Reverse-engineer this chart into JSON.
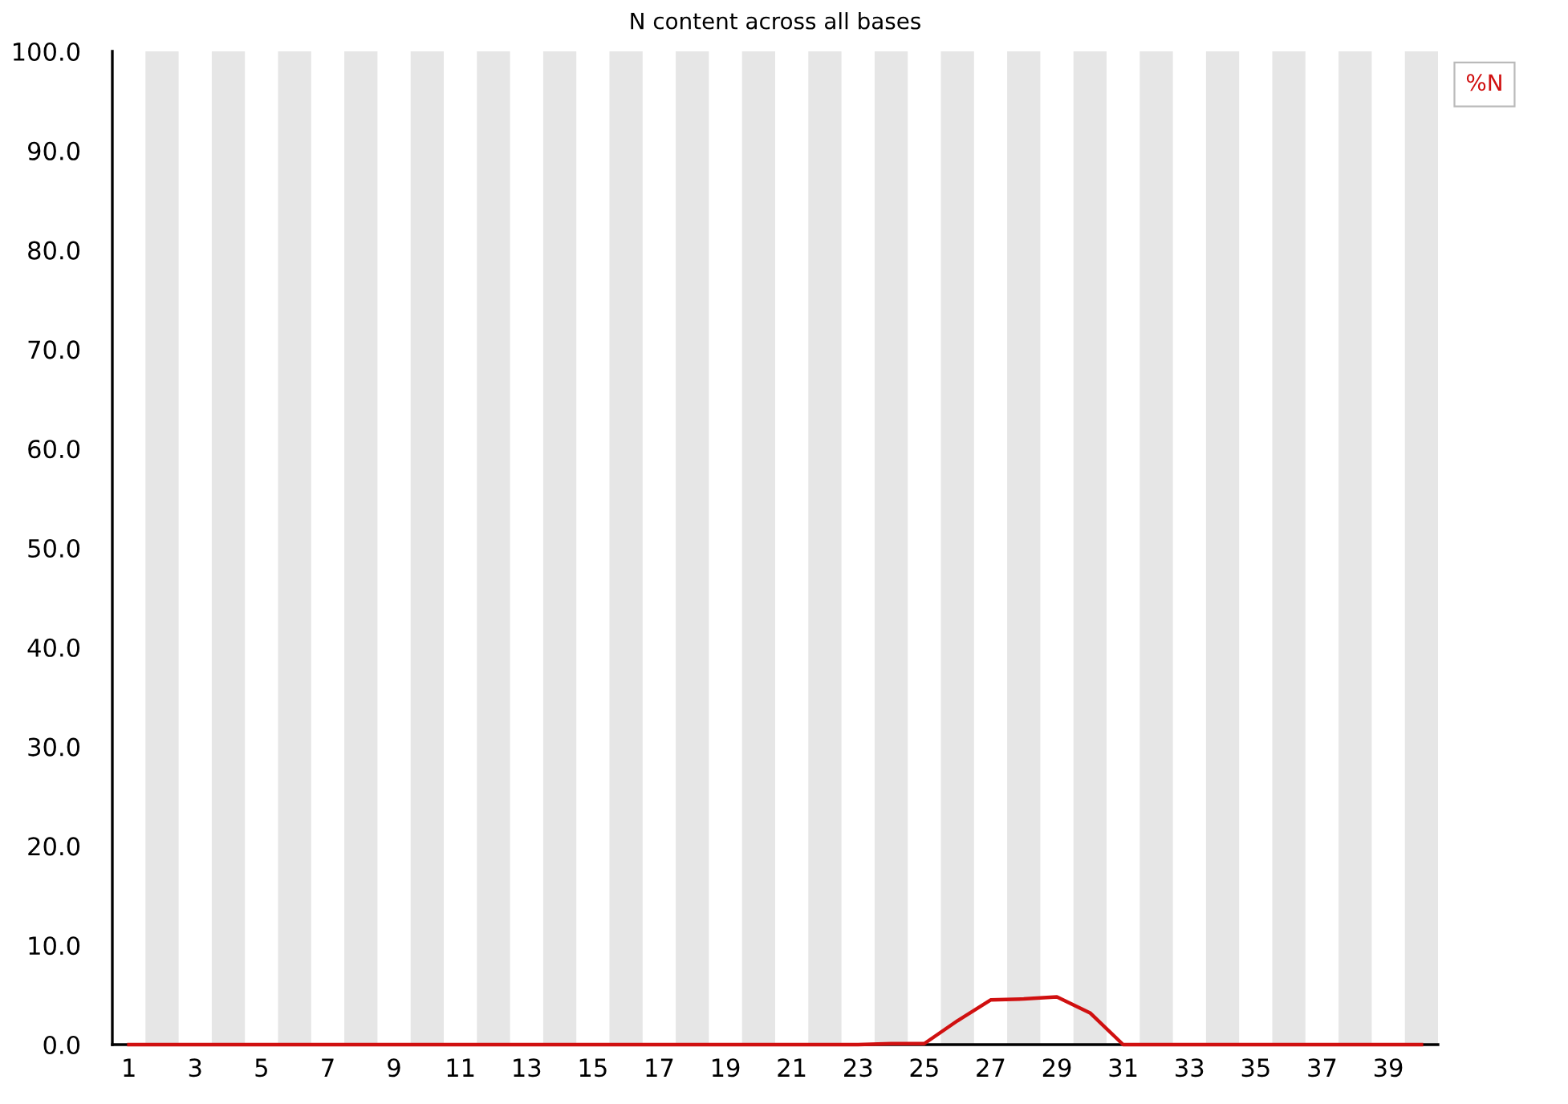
{
  "chart_data": {
    "type": "line",
    "title": "N content across all bases",
    "x": [
      1,
      2,
      3,
      4,
      5,
      6,
      7,
      8,
      9,
      10,
      11,
      12,
      13,
      14,
      15,
      16,
      17,
      18,
      19,
      20,
      21,
      22,
      23,
      24,
      25,
      26,
      27,
      28,
      29,
      30,
      31,
      32,
      33,
      34,
      35,
      36,
      37,
      38,
      39,
      40
    ],
    "series": [
      {
        "name": "%N",
        "color": "#d01010",
        "values": [
          0,
          0,
          0,
          0,
          0,
          0,
          0,
          0,
          0,
          0,
          0,
          0,
          0,
          0,
          0,
          0,
          0,
          0,
          0,
          0,
          0,
          0,
          0,
          0.1,
          0.1,
          2.4,
          4.5,
          4.6,
          4.8,
          3.2,
          0,
          0,
          0,
          0,
          0,
          0,
          0,
          0,
          0,
          0
        ]
      }
    ],
    "xlim": [
      0.5,
      40.5
    ],
    "xticks": [
      1,
      3,
      5,
      7,
      9,
      11,
      13,
      15,
      17,
      19,
      21,
      23,
      25,
      27,
      29,
      31,
      33,
      35,
      37,
      39
    ],
    "ylim": [
      0,
      100
    ],
    "yticks": [
      {
        "value": 0,
        "label": "0.0"
      },
      {
        "value": 10,
        "label": "10.0"
      },
      {
        "value": 20,
        "label": "20.0"
      },
      {
        "value": 30,
        "label": "30.0"
      },
      {
        "value": 40,
        "label": "40.0"
      },
      {
        "value": 50,
        "label": "50.0"
      },
      {
        "value": 60,
        "label": "60.0"
      },
      {
        "value": 70,
        "label": "70.0"
      },
      {
        "value": 80,
        "label": "80.0"
      },
      {
        "value": 90,
        "label": "90.0"
      },
      {
        "value": 100,
        "label": "100.0"
      }
    ],
    "bands": [
      {
        "axis": "x",
        "from": 1.5,
        "to": 2.5,
        "color": "#e6e6e6"
      },
      {
        "axis": "x",
        "from": 3.5,
        "to": 4.5,
        "color": "#e6e6e6"
      },
      {
        "axis": "x",
        "from": 5.5,
        "to": 6.5,
        "color": "#e6e6e6"
      },
      {
        "axis": "x",
        "from": 7.5,
        "to": 8.5,
        "color": "#e6e6e6"
      },
      {
        "axis": "x",
        "from": 9.5,
        "to": 10.5,
        "color": "#e6e6e6"
      },
      {
        "axis": "x",
        "from": 11.5,
        "to": 12.5,
        "color": "#e6e6e6"
      },
      {
        "axis": "x",
        "from": 13.5,
        "to": 14.5,
        "color": "#e6e6e6"
      },
      {
        "axis": "x",
        "from": 15.5,
        "to": 16.5,
        "color": "#e6e6e6"
      },
      {
        "axis": "x",
        "from": 17.5,
        "to": 18.5,
        "color": "#e6e6e6"
      },
      {
        "axis": "x",
        "from": 19.5,
        "to": 20.5,
        "color": "#e6e6e6"
      },
      {
        "axis": "x",
        "from": 21.5,
        "to": 22.5,
        "color": "#e6e6e6"
      },
      {
        "axis": "x",
        "from": 23.5,
        "to": 24.5,
        "color": "#e6e6e6"
      },
      {
        "axis": "x",
        "from": 25.5,
        "to": 26.5,
        "color": "#e6e6e6"
      },
      {
        "axis": "x",
        "from": 27.5,
        "to": 28.5,
        "color": "#e6e6e6"
      },
      {
        "axis": "x",
        "from": 29.5,
        "to": 30.5,
        "color": "#e6e6e6"
      },
      {
        "axis": "x",
        "from": 31.5,
        "to": 32.5,
        "color": "#e6e6e6"
      },
      {
        "axis": "x",
        "from": 33.5,
        "to": 34.5,
        "color": "#e6e6e6"
      },
      {
        "axis": "x",
        "from": 35.5,
        "to": 36.5,
        "color": "#e6e6e6"
      },
      {
        "axis": "x",
        "from": 37.5,
        "to": 38.5,
        "color": "#e6e6e6"
      },
      {
        "axis": "x",
        "from": 39.5,
        "to": 40.5,
        "color": "#e6e6e6"
      }
    ],
    "legend": "top right",
    "grid": false,
    "marker": "none",
    "line_style": "solid"
  }
}
